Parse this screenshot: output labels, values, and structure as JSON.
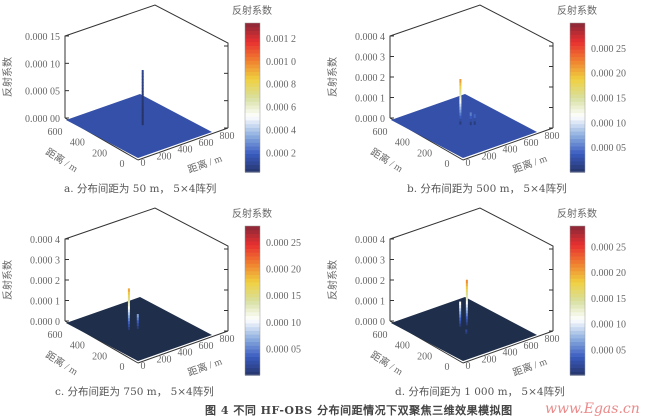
{
  "figure_caption": "图 4   不同 HF-OBS 分布间距情况下双聚焦三维效果模拟图",
  "watermark": "www.Egas.cn",
  "colormap": [
    "#26346a",
    "#3a5cc0",
    "#8fb0e0",
    "#ffffff",
    "#d8e0a0",
    "#f0d040",
    "#f08030",
    "#e83030",
    "#8a2838"
  ],
  "chart_data": [
    {
      "type": "surface3d",
      "caption": "a. 分布间距为 50 m， 5×4阵列",
      "zlabel": "反射系数",
      "xlabel": "距离 / m",
      "ylabel": "距离 / m",
      "x_ticks": [
        "0",
        "200",
        "400",
        "600",
        "800"
      ],
      "xlim": [
        0,
        800
      ],
      "y_ticks": [
        "0",
        "200",
        "400",
        "600"
      ],
      "ylim": [
        0,
        600
      ],
      "z_ticks": [
        "0.000 00",
        "0.000 05",
        "0.000 10",
        "0.000 15"
      ],
      "zlim": [
        0,
        0.00015
      ],
      "colorbar": {
        "title": "反射系数",
        "range": [
          3e-05,
          0.00133
        ],
        "ticks": [
          {
            "label": "0.000 2",
            "value": 0.0002
          },
          {
            "label": "0.000 4",
            "value": 0.0004
          },
          {
            "label": "0.000 6",
            "value": 0.0006
          },
          {
            "label": "0.000 8",
            "value": 0.0008
          },
          {
            "label": "0.001 0",
            "value": 0.001
          },
          {
            "label": "0.001 2",
            "value": 0.0012
          }
        ]
      },
      "floor_color": "#3550a8",
      "peaks": [
        {
          "x": 440,
          "y": 300,
          "z": 0.0001
        }
      ]
    },
    {
      "type": "surface3d",
      "caption": "b. 分布间距为 500 m， 5×4阵列",
      "zlabel": "反射系数",
      "xlabel": "距离 / m",
      "ylabel": "距离 / m",
      "x_ticks": [
        "0",
        "200",
        "400",
        "600",
        "800"
      ],
      "xlim": [
        0,
        800
      ],
      "y_ticks": [
        "0",
        "200",
        "400",
        "600"
      ],
      "ylim": [
        0,
        600
      ],
      "z_ticks": [
        "0.000 0",
        "0.000 1",
        "0.000 2",
        "0.000 3",
        "0.000 4"
      ],
      "zlim": [
        0,
        0.0004
      ],
      "colorbar": {
        "title": "反射系数",
        "range": [
          0,
          0.0003
        ],
        "ticks": [
          {
            "label": "0.000 05",
            "value": 5e-05
          },
          {
            "label": "0.000 10",
            "value": 0.0001
          },
          {
            "label": "0.000 15",
            "value": 0.00015
          },
          {
            "label": "0.000 20",
            "value": 0.0002
          },
          {
            "label": "0.000 25",
            "value": 0.00025
          }
        ]
      },
      "floor_color": "#3550a8",
      "peaks": [
        {
          "x": 400,
          "y": 330,
          "z": 0.00022
        },
        {
          "x": 460,
          "y": 290,
          "z": 6e-05
        },
        {
          "x": 490,
          "y": 280,
          "z": 5e-05
        }
      ]
    },
    {
      "type": "surface3d",
      "caption": "c. 分布间距为 750 m， 5×4阵列",
      "zlabel": "反射系数",
      "xlabel": "距离 / m",
      "ylabel": "距离 / m",
      "x_ticks": [
        "0",
        "200",
        "400",
        "600",
        "800"
      ],
      "xlim": [
        0,
        800
      ],
      "y_ticks": [
        "0",
        "200",
        "400",
        "600"
      ],
      "ylim": [
        0,
        600
      ],
      "z_ticks": [
        "0.000 0",
        "0.000 1",
        "0.000 2",
        "0.000 3",
        "0.000 4"
      ],
      "zlim": [
        0,
        0.0004
      ],
      "colorbar": {
        "title": "反射系数",
        "range": [
          0,
          0.00028
        ],
        "ticks": [
          {
            "label": "0.000 05",
            "value": 5e-05
          },
          {
            "label": "0.000 10",
            "value": 0.0001
          },
          {
            "label": "0.000 15",
            "value": 0.00015
          },
          {
            "label": "0.000 20",
            "value": 0.0002
          },
          {
            "label": "0.000 25",
            "value": 0.00025
          }
        ]
      },
      "floor_color": "#1f2e4a",
      "peaks": [
        {
          "x": 330,
          "y": 330,
          "z": 0.0002
        },
        {
          "x": 400,
          "y": 310,
          "z": 7e-05
        }
      ]
    },
    {
      "type": "surface3d",
      "caption": "d. 分布间距为 1 000 m， 5×4阵列",
      "zlabel": "反射系数",
      "xlabel": "距离 / m",
      "ylabel": "距离 / m",
      "x_ticks": [
        "0",
        "200",
        "400",
        "600",
        "800"
      ],
      "xlim": [
        0,
        800
      ],
      "y_ticks": [
        "0",
        "200",
        "400",
        "600"
      ],
      "ylim": [
        0,
        600
      ],
      "z_ticks": [
        "0.000 0",
        "0.000 1",
        "0.000 2",
        "0.000 3",
        "0.000 4"
      ],
      "zlim": [
        0,
        0.0004
      ],
      "colorbar": {
        "title": "反射系数",
        "range": [
          0,
          0.00029
        ],
        "ticks": [
          {
            "label": "0.000 05",
            "value": 5e-05
          },
          {
            "label": "0.000 10",
            "value": 0.0001
          },
          {
            "label": "0.000 15",
            "value": 0.00015
          },
          {
            "label": "0.000 20",
            "value": 0.0002
          },
          {
            "label": "0.000 25",
            "value": 0.00025
          }
        ]
      },
      "floor_color": "#1f2e4a",
      "peaks": [
        {
          "x": 470,
          "y": 330,
          "z": 0.00022
        },
        {
          "x": 410,
          "y": 340,
          "z": 0.00012
        },
        {
          "x": 360,
          "y": 250,
          "z": 2e-05
        }
      ]
    }
  ]
}
